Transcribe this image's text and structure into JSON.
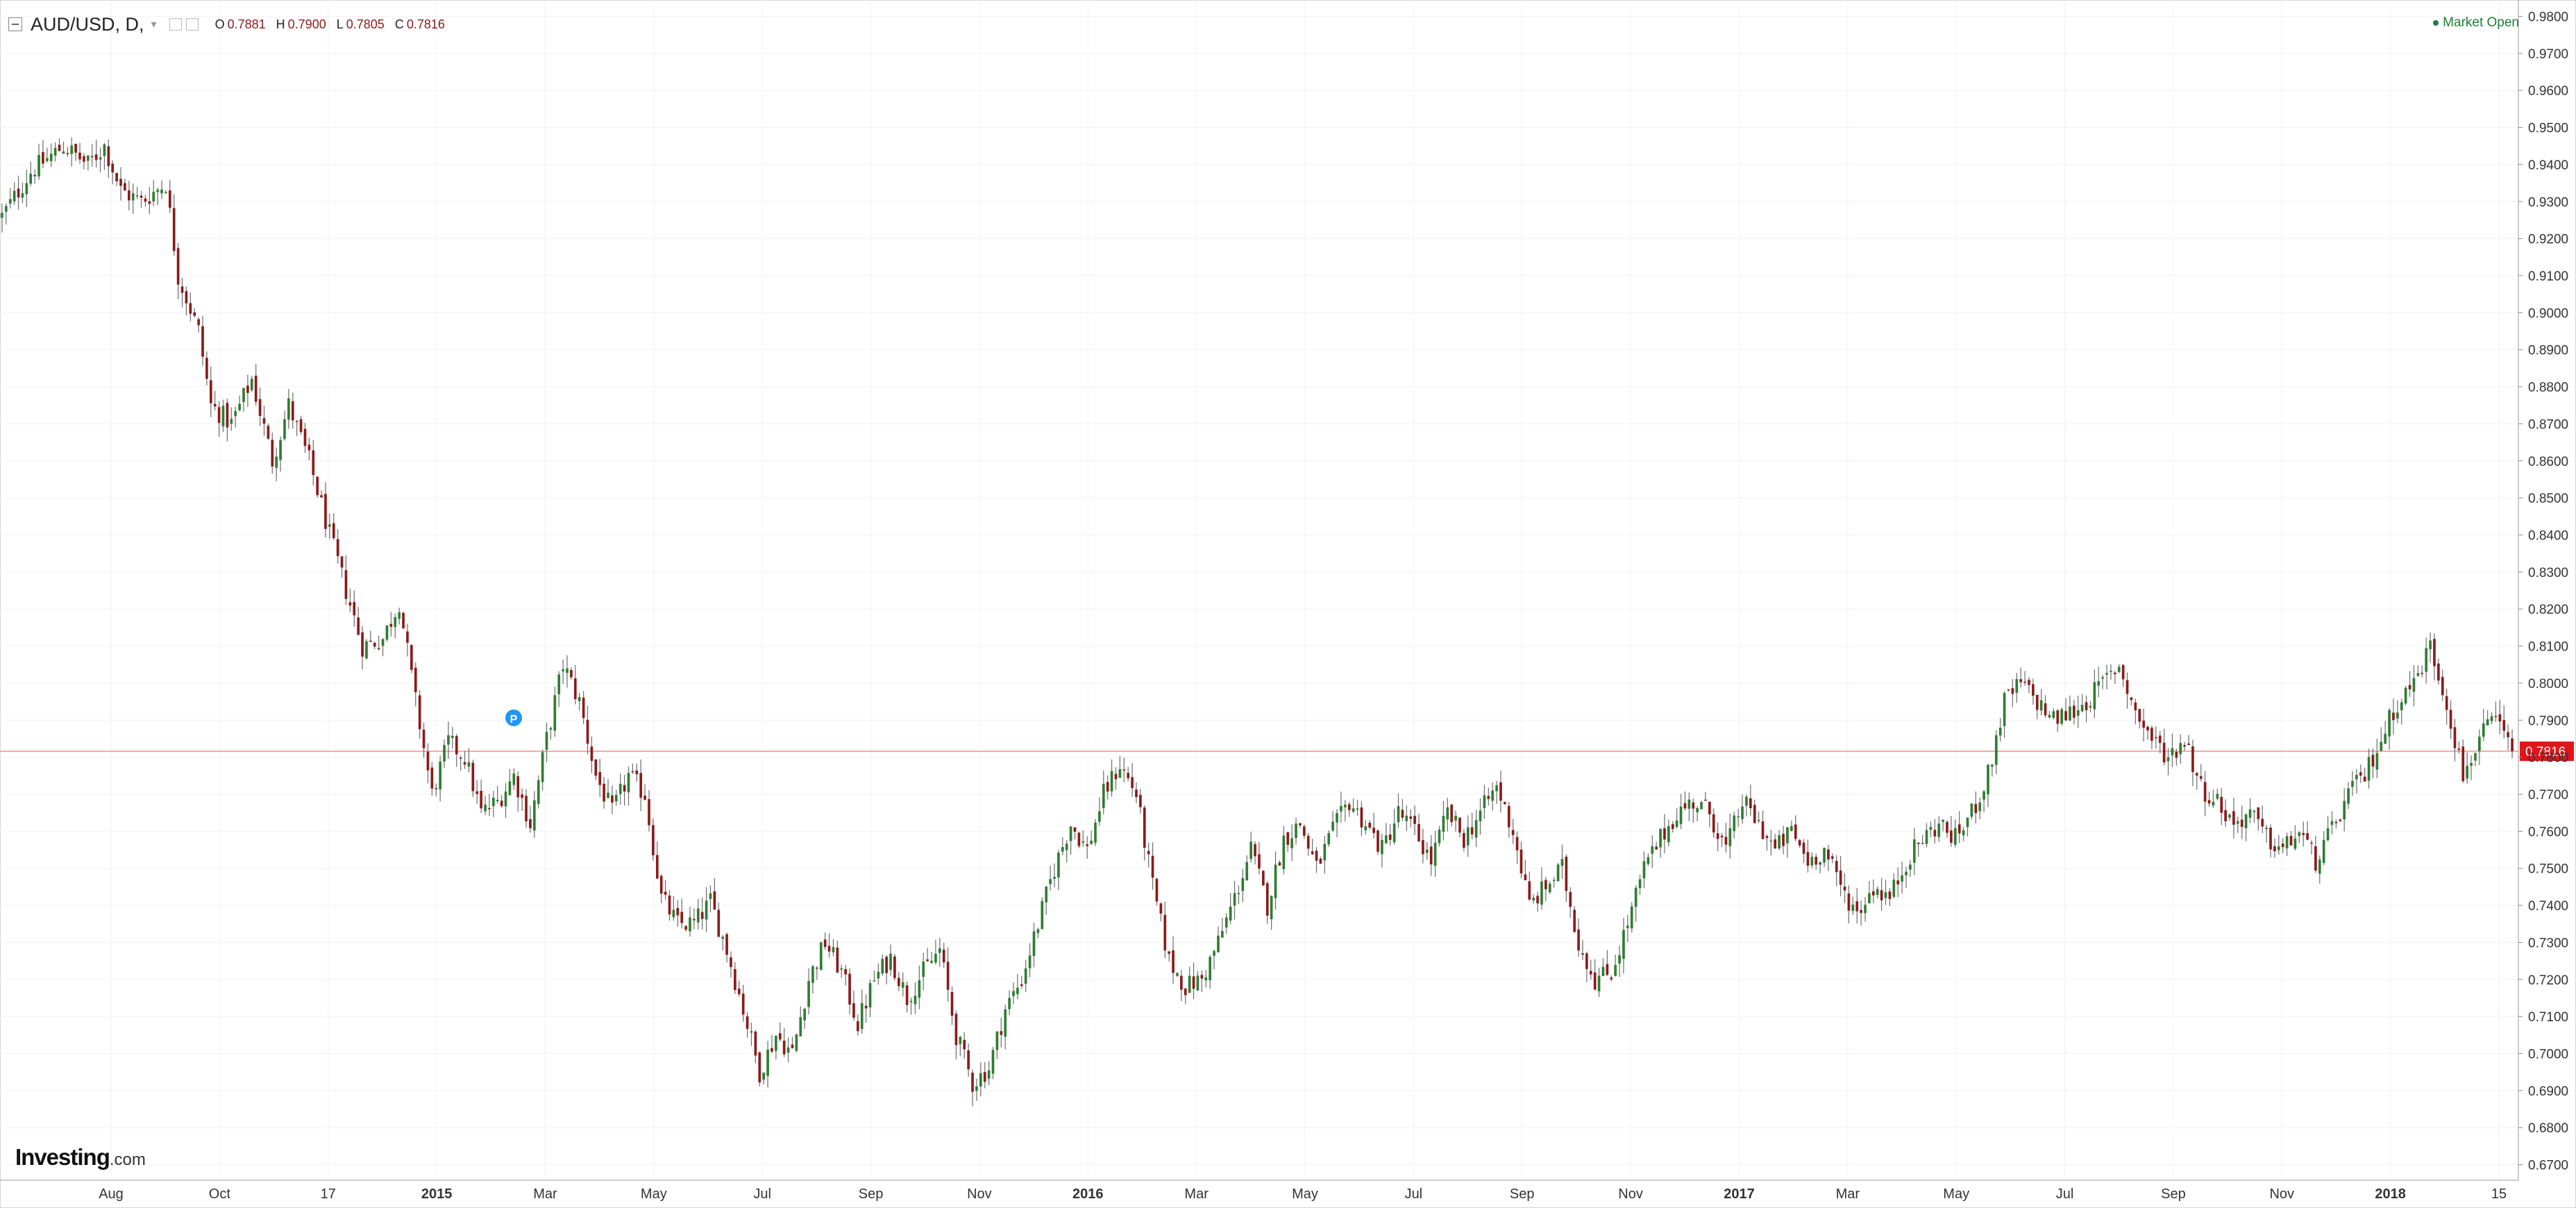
{
  "header": {
    "symbol": "AUD/USD, D,",
    "open_label": "O",
    "open_value": "0.7881",
    "high_label": "H",
    "high_value": "0.7900",
    "low_label": "L",
    "low_value": "0.7805",
    "close_label": "C",
    "close_value": "0.7816",
    "market_status": "Market Open"
  },
  "branding": {
    "logo_main": "Investing",
    "logo_suffix": ".com"
  },
  "colors": {
    "up": "#2e7d32",
    "down": "#8b1a1a",
    "wick": "#6b6b6b",
    "price_line": "#f4a6a6",
    "price_label_bg": "#e0151a",
    "grid": "#f2f2f2"
  },
  "chart_data": {
    "type": "candlestick",
    "ylim": [
      0.6658,
      0.9844
    ],
    "y_ticks": [
      "0.9800",
      "0.9700",
      "0.9600",
      "0.9500",
      "0.9400",
      "0.9300",
      "0.9200",
      "0.9100",
      "0.9000",
      "0.8900",
      "0.8800",
      "0.8700",
      "0.8600",
      "0.8500",
      "0.8400",
      "0.8300",
      "0.8200",
      "0.8100",
      "0.8000",
      "0.7900",
      "0.7800",
      "0.7700",
      "0.7600",
      "0.7500",
      "0.7400",
      "0.7300",
      "0.7200",
      "0.7100",
      "0.7000",
      "0.6900",
      "0.6800",
      "0.6700"
    ],
    "x_ticks": [
      {
        "label": "Aug",
        "bold": false
      },
      {
        "label": "Oct",
        "bold": false
      },
      {
        "label": "17",
        "bold": false
      },
      {
        "label": "2015",
        "bold": true
      },
      {
        "label": "Mar",
        "bold": false
      },
      {
        "label": "May",
        "bold": false
      },
      {
        "label": "Jul",
        "bold": false
      },
      {
        "label": "Sep",
        "bold": false
      },
      {
        "label": "Nov",
        "bold": false
      },
      {
        "label": "2016",
        "bold": true
      },
      {
        "label": "Mar",
        "bold": false
      },
      {
        "label": "May",
        "bold": false
      },
      {
        "label": "Jul",
        "bold": false
      },
      {
        "label": "Sep",
        "bold": false
      },
      {
        "label": "Nov",
        "bold": false
      },
      {
        "label": "2017",
        "bold": true
      },
      {
        "label": "Mar",
        "bold": false
      },
      {
        "label": "May",
        "bold": false
      },
      {
        "label": "Jul",
        "bold": false
      },
      {
        "label": "Sep",
        "bold": false
      },
      {
        "label": "Nov",
        "bold": false
      },
      {
        "label": "2018",
        "bold": true
      },
      {
        "label": "15",
        "bold": false
      }
    ],
    "current_price": "0.7816",
    "path_points": [
      [
        0,
        0.926
      ],
      [
        7,
        0.938
      ],
      [
        15,
        0.945
      ],
      [
        21,
        0.94
      ],
      [
        25,
        0.945
      ],
      [
        29,
        0.933
      ],
      [
        34,
        0.93
      ],
      [
        40,
        0.935
      ],
      [
        43,
        0.91
      ],
      [
        48,
        0.895
      ],
      [
        51,
        0.875
      ],
      [
        56,
        0.87
      ],
      [
        61,
        0.882
      ],
      [
        66,
        0.86
      ],
      [
        70,
        0.875
      ],
      [
        75,
        0.86
      ],
      [
        80,
        0.84
      ],
      [
        84,
        0.825
      ],
      [
        88,
        0.81
      ],
      [
        93,
        0.812
      ],
      [
        97,
        0.822
      ],
      [
        101,
        0.795
      ],
      [
        105,
        0.77
      ],
      [
        109,
        0.784
      ],
      [
        113,
        0.78
      ],
      [
        117,
        0.765
      ],
      [
        121,
        0.768
      ],
      [
        125,
        0.775
      ],
      [
        129,
        0.762
      ],
      [
        133,
        0.785
      ],
      [
        137,
        0.805
      ],
      [
        141,
        0.795
      ],
      [
        145,
        0.775
      ],
      [
        149,
        0.765
      ],
      [
        153,
        0.775
      ],
      [
        157,
        0.77
      ],
      [
        161,
        0.742
      ],
      [
        165,
        0.735
      ],
      [
        169,
        0.735
      ],
      [
        173,
        0.741
      ],
      [
        177,
        0.728
      ],
      [
        181,
        0.712
      ],
      [
        185,
        0.695
      ],
      [
        189,
        0.705
      ],
      [
        193,
        0.7
      ],
      [
        197,
        0.72
      ],
      [
        201,
        0.73
      ],
      [
        205,
        0.722
      ],
      [
        209,
        0.708
      ],
      [
        213,
        0.72
      ],
      [
        217,
        0.726
      ],
      [
        221,
        0.715
      ],
      [
        225,
        0.722
      ],
      [
        229,
        0.728
      ],
      [
        233,
        0.705
      ],
      [
        237,
        0.692
      ],
      [
        241,
        0.696
      ],
      [
        245,
        0.712
      ],
      [
        249,
        0.72
      ],
      [
        253,
        0.735
      ],
      [
        257,
        0.75
      ],
      [
        261,
        0.762
      ],
      [
        265,
        0.755
      ],
      [
        269,
        0.77
      ],
      [
        273,
        0.778
      ],
      [
        277,
        0.77
      ],
      [
        281,
        0.745
      ],
      [
        285,
        0.725
      ],
      [
        289,
        0.718
      ],
      [
        293,
        0.72
      ],
      [
        297,
        0.73
      ],
      [
        301,
        0.742
      ],
      [
        305,
        0.755
      ],
      [
        309,
        0.74
      ],
      [
        313,
        0.758
      ],
      [
        317,
        0.762
      ],
      [
        321,
        0.75
      ],
      [
        325,
        0.76
      ],
      [
        329,
        0.768
      ],
      [
        333,
        0.762
      ],
      [
        337,
        0.755
      ],
      [
        341,
        0.765
      ],
      [
        345,
        0.76
      ],
      [
        349,
        0.752
      ],
      [
        353,
        0.765
      ],
      [
        357,
        0.758
      ],
      [
        361,
        0.765
      ],
      [
        365,
        0.772
      ],
      [
        369,
        0.76
      ],
      [
        373,
        0.74
      ],
      [
        377,
        0.745
      ],
      [
        381,
        0.75
      ],
      [
        385,
        0.73
      ],
      [
        389,
        0.72
      ],
      [
        393,
        0.722
      ],
      [
        397,
        0.735
      ],
      [
        401,
        0.75
      ],
      [
        405,
        0.758
      ],
      [
        409,
        0.765
      ],
      [
        413,
        0.768
      ],
      [
        417,
        0.765
      ],
      [
        421,
        0.755
      ],
      [
        425,
        0.768
      ],
      [
        429,
        0.762
      ],
      [
        433,
        0.755
      ],
      [
        437,
        0.76
      ],
      [
        441,
        0.752
      ],
      [
        445,
        0.755
      ],
      [
        449,
        0.745
      ],
      [
        453,
        0.738
      ],
      [
        457,
        0.745
      ],
      [
        461,
        0.742
      ],
      [
        465,
        0.752
      ],
      [
        469,
        0.758
      ],
      [
        473,
        0.762
      ],
      [
        477,
        0.758
      ],
      [
        481,
        0.765
      ],
      [
        485,
        0.775
      ],
      [
        489,
        0.795
      ],
      [
        493,
        0.8
      ],
      [
        497,
        0.795
      ],
      [
        501,
        0.79
      ],
      [
        505,
        0.792
      ],
      [
        509,
        0.795
      ],
      [
        513,
        0.8
      ],
      [
        517,
        0.805
      ],
      [
        521,
        0.792
      ],
      [
        525,
        0.785
      ],
      [
        529,
        0.78
      ],
      [
        533,
        0.785
      ],
      [
        537,
        0.772
      ],
      [
        541,
        0.768
      ],
      [
        545,
        0.762
      ],
      [
        549,
        0.765
      ],
      [
        553,
        0.758
      ],
      [
        557,
        0.755
      ],
      [
        561,
        0.76
      ],
      [
        565,
        0.752
      ],
      [
        569,
        0.76
      ],
      [
        573,
        0.77
      ],
      [
        577,
        0.775
      ],
      [
        581,
        0.785
      ],
      [
        585,
        0.795
      ],
      [
        589,
        0.8
      ],
      [
        593,
        0.81
      ],
      [
        597,
        0.795
      ],
      [
        601,
        0.775
      ],
      [
        605,
        0.785
      ],
      [
        609,
        0.79
      ],
      [
        613,
        0.7816
      ]
    ]
  }
}
